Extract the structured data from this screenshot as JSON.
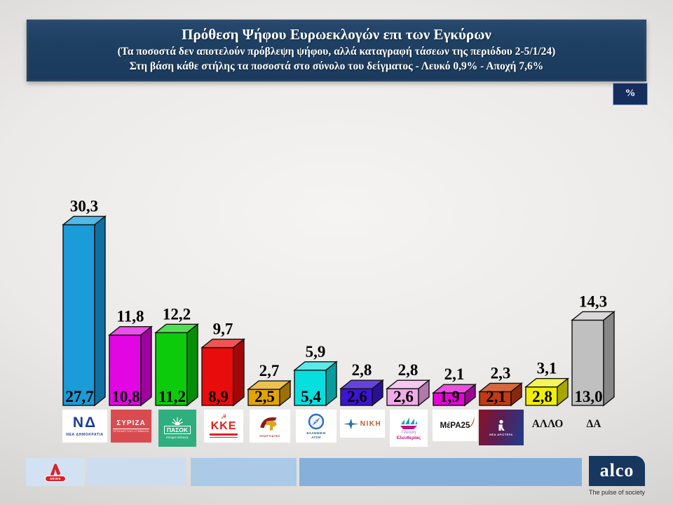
{
  "header": {
    "title": "Πρόθεση Ψήφου Ευρωεκλογών επι των Εγκύρων",
    "subtitle1": "(Τα ποσοστά δεν αποτελούν πρόβλεψη ψήφου, αλλά καταγραφή τάσεων της περιόδου  2-5/1/24)",
    "subtitle2": "Στη βάση κάθε στήλης τα ποσοστά στο σύνολο του δείγματος - Λευκό 0,9% - Αποχή 7,6%",
    "unit_label": "%"
  },
  "chart_data": {
    "type": "bar",
    "title": "Πρόθεση Ψήφου Ευρωεκλογών επι των Εγκύρων",
    "categories": [
      "ΝΕΑ ΔΗΜΟΚΡΑΤΙΑ",
      "ΣΥΡΙΖΑ",
      "ΠΑΣΟΚ",
      "ΚΚΕ",
      "ΣΠΑΡΤΙΑΤΕΣ",
      "ΕΛΛΗΝΙΚΗ ΛΥΣΗ",
      "ΝΙΚΗ",
      "ΠΛΕΥΣΗ ΕΛΕΥΘΕΡΙΑΣ",
      "ΜέΡΑ25",
      "ΝΕΑ ΑΡΙΣΤΕΡΑ",
      "ΑΛΛΟ",
      "ΔΑ"
    ],
    "series": [
      {
        "name": "Ποσοστό επί των εγκύρων (%)",
        "values": [
          30.3,
          11.8,
          12.2,
          9.7,
          2.7,
          5.9,
          2.8,
          2.8,
          2.1,
          2.3,
          3.1,
          14.3
        ]
      },
      {
        "name": "Ποσοστό στο σύνολο του δείγματος (%)",
        "values": [
          27.7,
          10.8,
          11.2,
          8.9,
          2.5,
          5.4,
          2.6,
          2.6,
          1.9,
          2.1,
          2.8,
          13.0
        ]
      }
    ],
    "top_labels": [
      "30,3",
      "11,8",
      "12,2",
      "9,7",
      "2,7",
      "5,9",
      "2,8",
      "2,8",
      "2,1",
      "2,3",
      "3,1",
      "14,3"
    ],
    "bottom_labels": [
      "27,7",
      "10,8",
      "11,2",
      "8,9",
      "2,5",
      "5,4",
      "2,6",
      "2,6",
      "1,9",
      "2,1",
      "2,8",
      "13,0"
    ],
    "bar_colors": [
      {
        "front": "#1b9bd7",
        "top": "#4fb9e8",
        "side": "#0e6fa3"
      },
      {
        "front": "#e206e2",
        "top": "#ec4fec",
        "side": "#9c049c"
      },
      {
        "front": "#0bcb0b",
        "top": "#52de52",
        "side": "#078e07"
      },
      {
        "front": "#e90c0c",
        "top": "#f05454",
        "side": "#a30808"
      },
      {
        "front": "#e2a306",
        "top": "#ecc24f",
        "side": "#9c7104"
      },
      {
        "front": "#07dfdf",
        "top": "#5beaea",
        "side": "#059c9c"
      },
      {
        "front": "#3d14d2",
        "top": "#6542df",
        "side": "#2b0e93"
      },
      {
        "front": "#f0abe6",
        "top": "#f6c8ef",
        "side": "#b279ab"
      },
      {
        "front": "#e206d2",
        "top": "#ec4fe0",
        "side": "#9c0493"
      },
      {
        "front": "#c23a12",
        "top": "#d4693f",
        "side": "#88280c"
      },
      {
        "front": "#efef06",
        "top": "#f5f55b",
        "side": "#a7a704"
      },
      {
        "front": "#c0c0c0",
        "top": "#d9d9d9",
        "side": "#878787"
      }
    ],
    "ylim": [
      0,
      32
    ],
    "grid": false,
    "legend": "none",
    "unit": "%"
  },
  "parties": [
    {
      "name": "ΝΕΑ ΔΗΜΟΚΡΑΤΙΑ",
      "logo_main": "ΝΔ",
      "logo_sub": "ΝΕΑ ΔΗΜΟΚΡΑΤΙΑ"
    },
    {
      "name": "ΣΥΡΙΖΑ",
      "logo_main": "ΣΥΡΙΖΑ",
      "logo_sub": "ΠΡΟΟΔΕΥΤΙΚΗ ΣΥΜΜΑΧΙΑ"
    },
    {
      "name": "ΠΑΣΟΚ",
      "logo_main": "ΠΑΣΟΚ",
      "logo_sub": "Κίνημα αλλαγής"
    },
    {
      "name": "ΚΚΕ",
      "logo_main": "ΚΚΕ",
      "logo_symbol": "☭"
    },
    {
      "name": "ΣΠΑΡΤΙΑΤΕΣ",
      "logo_sub": "ΣΠΑΡΤΙΑΤΕΣ"
    },
    {
      "name": "ΕΛΛΗΝΙΚΗ ΛΥΣΗ",
      "logo_sub_line1": "ΕΛΛΗΝΙΚΗ",
      "logo_sub_line2": "ΛΥΣΗ"
    },
    {
      "name": "ΝΙΚΗ",
      "logo_main": "ΝΙΚΗ"
    },
    {
      "name": "ΠΛΕΥΣΗ ΕΛΕΥΘΕΡΙΑΣ",
      "logo_main": "Πλεύση",
      "logo_sub": "Ελευθερίας"
    },
    {
      "name": "ΜέΡΑ25",
      "logo_main": "ΜέΡΑ25"
    },
    {
      "name": "ΝΕΑ ΑΡΙΣΤΕΡΑ",
      "logo_sub": "ΝΕΑ ΑΡΙΣΤΕΡΑ"
    },
    {
      "name": "ΑΛΛΟ",
      "logo_main": "ΑΛΛΟ"
    },
    {
      "name": "ΔΑ",
      "logo_main": "ΔΑ"
    }
  ],
  "footer": {
    "alpha_news_label": "NEWS",
    "alco_label": "alco",
    "tagline": "The pulse of society"
  }
}
